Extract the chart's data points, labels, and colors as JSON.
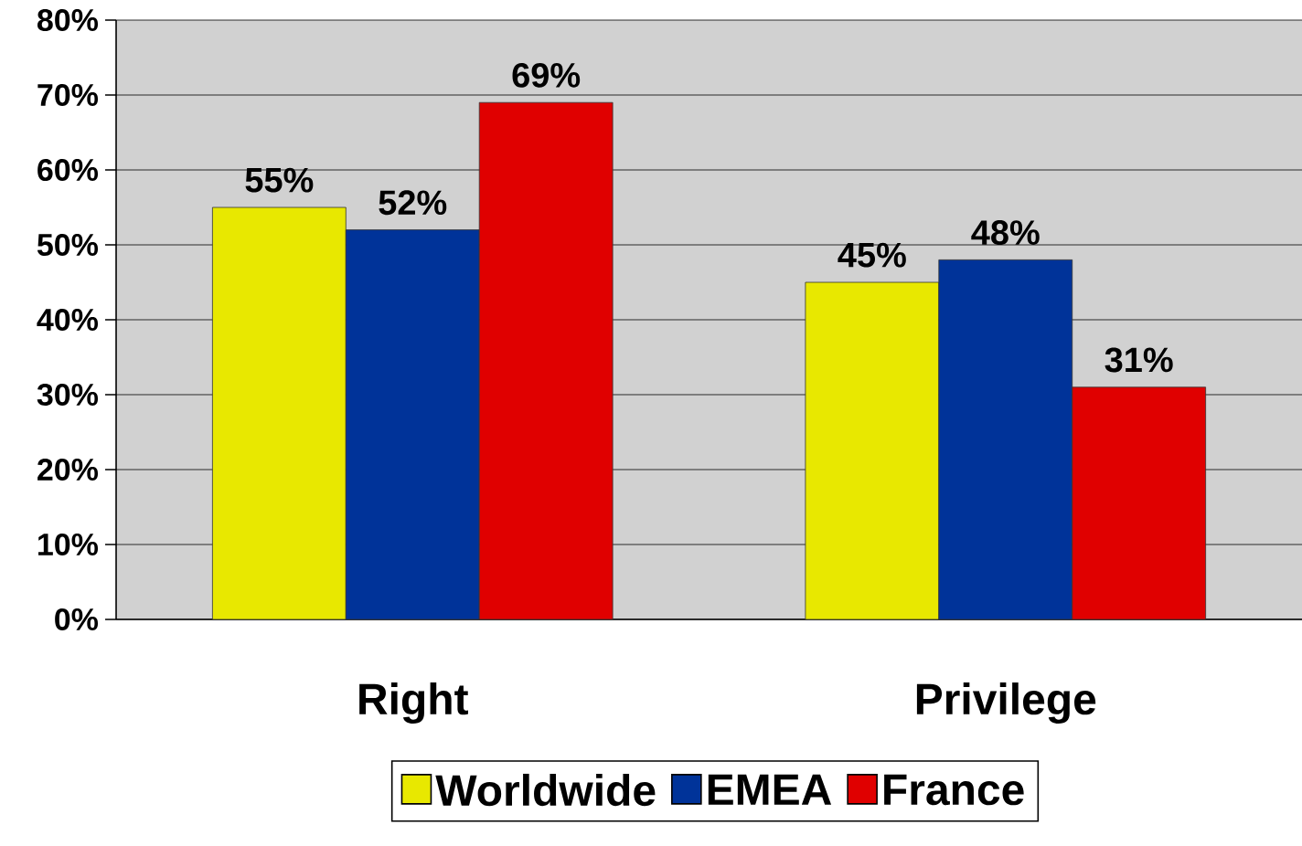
{
  "chart_data": {
    "type": "bar",
    "categories": [
      "Right",
      "Privilege"
    ],
    "series": [
      {
        "name": "Worldwide",
        "color": "#e8e800",
        "values": [
          55,
          45
        ],
        "value_labels": [
          "55%",
          "45%"
        ]
      },
      {
        "name": "EMEA",
        "color": "#003399",
        "values": [
          52,
          48
        ],
        "value_labels": [
          "52%",
          "48%"
        ]
      },
      {
        "name": "France",
        "color": "#e00000",
        "values": [
          69,
          31
        ],
        "value_labels": [
          "69%",
          "31%"
        ]
      }
    ],
    "ylim": [
      0,
      80
    ],
    "yticks": [
      {
        "value": 0,
        "label": "0%"
      },
      {
        "value": 10,
        "label": "10%"
      },
      {
        "value": 20,
        "label": "20%"
      },
      {
        "value": 30,
        "label": "30%"
      },
      {
        "value": 40,
        "label": "40%"
      },
      {
        "value": 50,
        "label": "50%"
      },
      {
        "value": 60,
        "label": "60%"
      },
      {
        "value": 70,
        "label": "70%"
      },
      {
        "value": 80,
        "label": "80%"
      }
    ],
    "grid": "y",
    "legend": "bottom"
  }
}
